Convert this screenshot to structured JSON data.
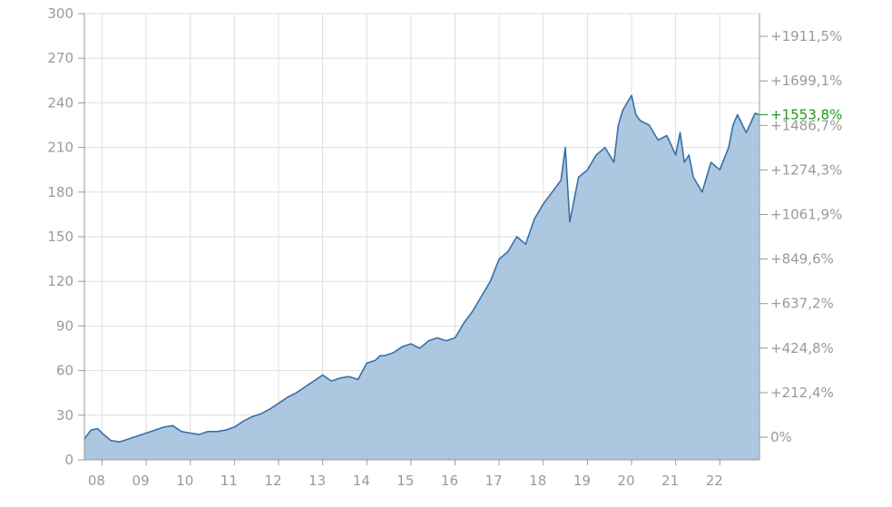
{
  "chart_data": {
    "type": "area",
    "x_ticks": [
      "08",
      "09",
      "10",
      "11",
      "12",
      "13",
      "14",
      "15",
      "16",
      "17",
      "18",
      "19",
      "20",
      "21",
      "22"
    ],
    "y_left": {
      "min": 0,
      "max": 300,
      "ticks": [
        0,
        30,
        60,
        90,
        120,
        150,
        180,
        210,
        240,
        270,
        300
      ]
    },
    "y_right_ticks": [
      "0%",
      "+212,4%",
      "+424,8%",
      "+637,2%",
      "+849,6%",
      "+1061,9%",
      "+1274,3%",
      "+1486,7%",
      "+1699,1%",
      "+1911,5%"
    ],
    "current_label": "+1553,8%",
    "colors": {
      "line": "#3570a8",
      "fill": "#a9c4df",
      "current": "#1a9a1a",
      "grid": "#dedede",
      "axis": "#9a9a9a"
    },
    "series": [
      {
        "x": [
          2007.6,
          2007.75,
          2007.9,
          2008.0,
          2008.2,
          2008.4,
          2008.6,
          2008.8,
          2009.0,
          2009.2,
          2009.4,
          2009.6,
          2009.8,
          2010.0,
          2010.2,
          2010.4,
          2010.6,
          2010.8,
          2011.0,
          2011.2,
          2011.4,
          2011.6,
          2011.8,
          2012.0,
          2012.2,
          2012.4,
          2012.6,
          2012.8,
          2013.0,
          2013.2,
          2013.4,
          2013.6,
          2013.8,
          2014.0,
          2014.2,
          2014.3,
          2014.4,
          2014.6,
          2014.8,
          2015.0,
          2015.2,
          2015.4,
          2015.6,
          2015.8,
          2016.0,
          2016.2,
          2016.4,
          2016.6,
          2016.8,
          2017.0,
          2017.2,
          2017.4,
          2017.6,
          2017.8,
          2018.0,
          2018.2,
          2018.4,
          2018.5,
          2018.6,
          2018.8,
          2019.0,
          2019.2,
          2019.4,
          2019.6,
          2019.7,
          2019.8,
          2019.9,
          2020.0,
          2020.1,
          2020.2,
          2020.4,
          2020.6,
          2020.8,
          2021.0,
          2021.1,
          2021.2,
          2021.3,
          2021.4,
          2021.6,
          2021.8,
          2022.0,
          2022.2,
          2022.3,
          2022.4,
          2022.5,
          2022.6,
          2022.8,
          2022.9
        ],
        "y": [
          14,
          20,
          21,
          18,
          13,
          12,
          14,
          16,
          18,
          20,
          22,
          23,
          19,
          18,
          17,
          19,
          19,
          20,
          22,
          26,
          29,
          31,
          34,
          38,
          42,
          45,
          49,
          53,
          57,
          53,
          55,
          56,
          54,
          65,
          67,
          70,
          70,
          72,
          76,
          78,
          75,
          80,
          82,
          80,
          82,
          92,
          100,
          110,
          120,
          135,
          140,
          150,
          145,
          162,
          172,
          180,
          188,
          210,
          160,
          190,
          195,
          205,
          210,
          200,
          225,
          235,
          240,
          245,
          232,
          228,
          225,
          215,
          218,
          205,
          220,
          200,
          205,
          190,
          180,
          200,
          195,
          210,
          225,
          232,
          226,
          220,
          233,
          232
        ]
      }
    ]
  }
}
